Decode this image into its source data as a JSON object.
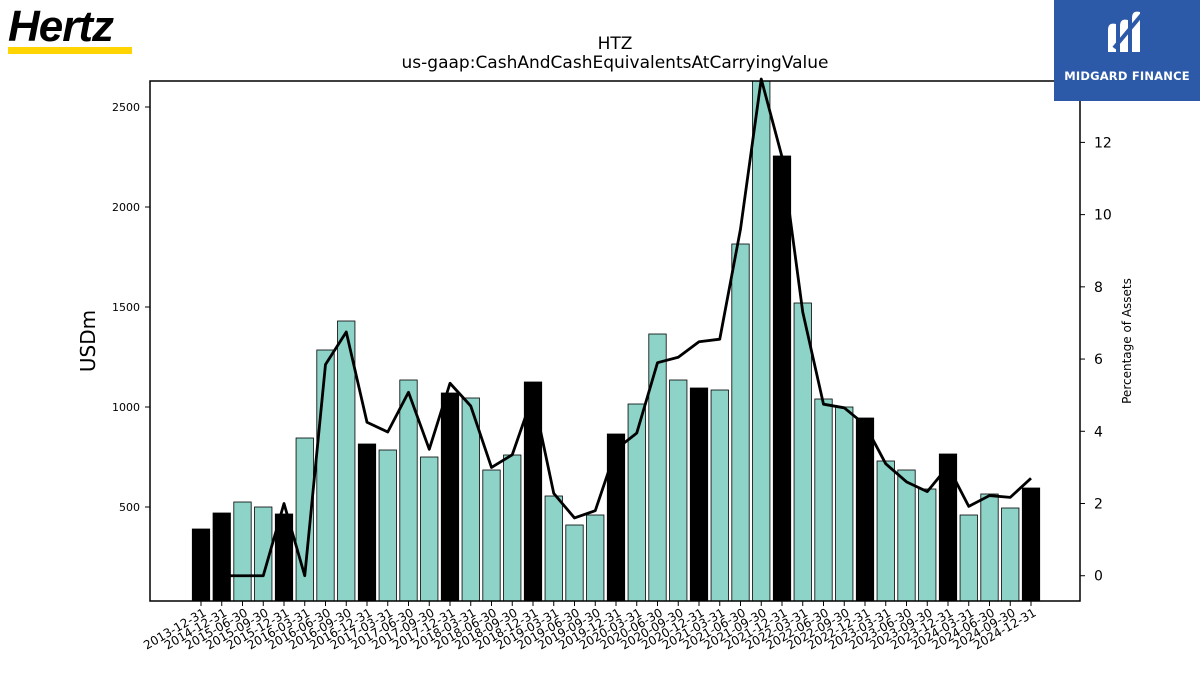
{
  "brand": {
    "logo_text": "Hertz",
    "stripe_color": "#ffd400"
  },
  "partner": {
    "label": "MIDGARD FINANCE",
    "bg_color": "#2d5aa8"
  },
  "colors": {
    "bar_teal": "#8dd3c7",
    "bar_black": "#000000",
    "line": "#000000"
  },
  "chart_data": {
    "type": "bar",
    "title": "HTZ",
    "subtitle": "us-gaap:CashAndCashEquivalentsAtCarryingValue",
    "ylabel": "USDm",
    "y2label": "Percentage of Assets",
    "ylim": [
      30,
      2630
    ],
    "y2lim": [
      -0.7,
      13.7
    ],
    "yticks": [
      500,
      1000,
      1500,
      2000,
      2500
    ],
    "y2ticks": [
      0,
      2,
      4,
      6,
      8,
      10,
      12
    ],
    "categories": [
      "2013-12-31",
      "2014-12-31",
      "2015-06-30",
      "2015-09-30",
      "2015-12-31",
      "2016-03-31",
      "2016-06-30",
      "2016-09-30",
      "2016-12-31",
      "2017-03-31",
      "2017-06-30",
      "2017-09-30",
      "2017-12-31",
      "2018-03-31",
      "2018-06-30",
      "2018-09-30",
      "2018-12-31",
      "2019-03-31",
      "2019-06-30",
      "2019-09-30",
      "2019-12-31",
      "2020-03-31",
      "2020-06-30",
      "2020-09-30",
      "2020-12-31",
      "2021-03-31",
      "2021-06-30",
      "2021-09-30",
      "2021-12-31",
      "2022-03-31",
      "2022-06-30",
      "2022-09-30",
      "2022-12-31",
      "2023-03-31",
      "2023-06-30",
      "2023-09-30",
      "2023-12-31",
      "2024-03-31",
      "2024-06-30",
      "2024-09-30",
      "2024-12-31"
    ],
    "series": [
      {
        "kind": "bar",
        "values": [
          390,
          470,
          525,
          500,
          465,
          845,
          1285,
          1430,
          815,
          785,
          1135,
          750,
          1070,
          1045,
          685,
          760,
          1125,
          555,
          410,
          460,
          865,
          1015,
          1365,
          1135,
          1095,
          1085,
          1815,
          2630,
          2255,
          1520,
          1040,
          1000,
          945,
          730,
          685,
          590,
          765,
          460,
          565,
          495,
          595
        ],
        "annual_flags": [
          1,
          1,
          0,
          0,
          1,
          0,
          0,
          0,
          1,
          0,
          0,
          0,
          1,
          0,
          0,
          0,
          1,
          0,
          0,
          0,
          1,
          0,
          0,
          0,
          1,
          0,
          0,
          0,
          1,
          0,
          0,
          0,
          1,
          0,
          0,
          0,
          1,
          0,
          0,
          0,
          1
        ]
      },
      {
        "kind": "line",
        "axis": "right",
        "values": [
          null,
          0.0,
          0.0,
          0.0,
          2.0,
          0.0,
          5.85,
          6.75,
          4.25,
          3.98,
          5.08,
          3.5,
          5.33,
          4.7,
          3.0,
          3.35,
          5.0,
          2.28,
          1.6,
          1.8,
          3.5,
          3.95,
          5.9,
          6.05,
          6.48,
          6.55,
          9.6,
          13.8,
          11.6,
          7.3,
          4.75,
          4.65,
          4.18,
          3.1,
          2.6,
          2.33,
          3.03,
          1.92,
          2.22,
          2.17,
          2.7
        ]
      }
    ],
    "grid": false,
    "legend": "none"
  }
}
